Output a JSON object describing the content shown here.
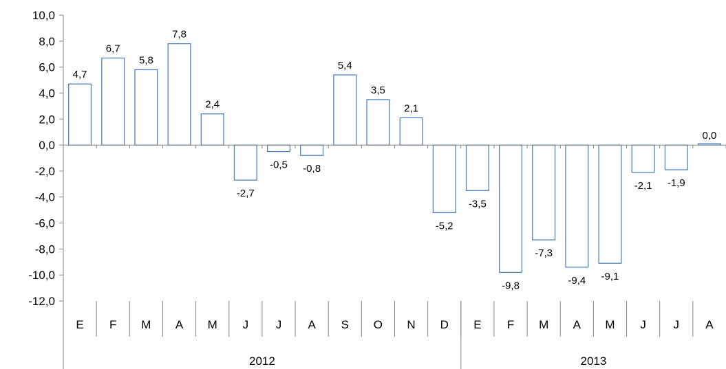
{
  "chart_data": {
    "type": "bar",
    "title": "",
    "xlabel": "",
    "ylabel": "",
    "ylim": [
      -12,
      10
    ],
    "y_ticks": [
      "10,0",
      "8,0",
      "6,0",
      "4,0",
      "2,0",
      "0,0",
      "-2,0",
      "-4,0",
      "-6,0",
      "-8,0",
      "-10,0",
      "-12,0"
    ],
    "categories": [
      "E",
      "F",
      "M",
      "A",
      "M",
      "J",
      "J",
      "A",
      "S",
      "O",
      "N",
      "D",
      "E",
      "F",
      "M",
      "A",
      "M",
      "J",
      "J",
      "A"
    ],
    "values": [
      4.7,
      6.7,
      5.8,
      7.8,
      2.4,
      -2.7,
      -0.5,
      -0.8,
      5.4,
      3.5,
      2.1,
      -5.2,
      -3.5,
      -9.8,
      -7.3,
      -9.4,
      -9.1,
      -2.1,
      -1.9,
      0.0
    ],
    "data_labels": [
      "4,7",
      "6,7",
      "5,8",
      "7,8",
      "2,4",
      "-2,7",
      "-0,5",
      "-0,8",
      "5,4",
      "3,5",
      "2,1",
      "-5,2",
      "-3,5",
      "-9,8",
      "-7,3",
      "-9,4",
      "-9,1",
      "-2,1",
      "-1,9",
      "0,0"
    ],
    "groups": [
      {
        "label": "2012",
        "count": 12
      },
      {
        "label": "2013",
        "count": 8
      }
    ],
    "grid": false,
    "legend": "none",
    "bar_stroke": "#4f81bd",
    "bar_fill": "#ffffff"
  }
}
